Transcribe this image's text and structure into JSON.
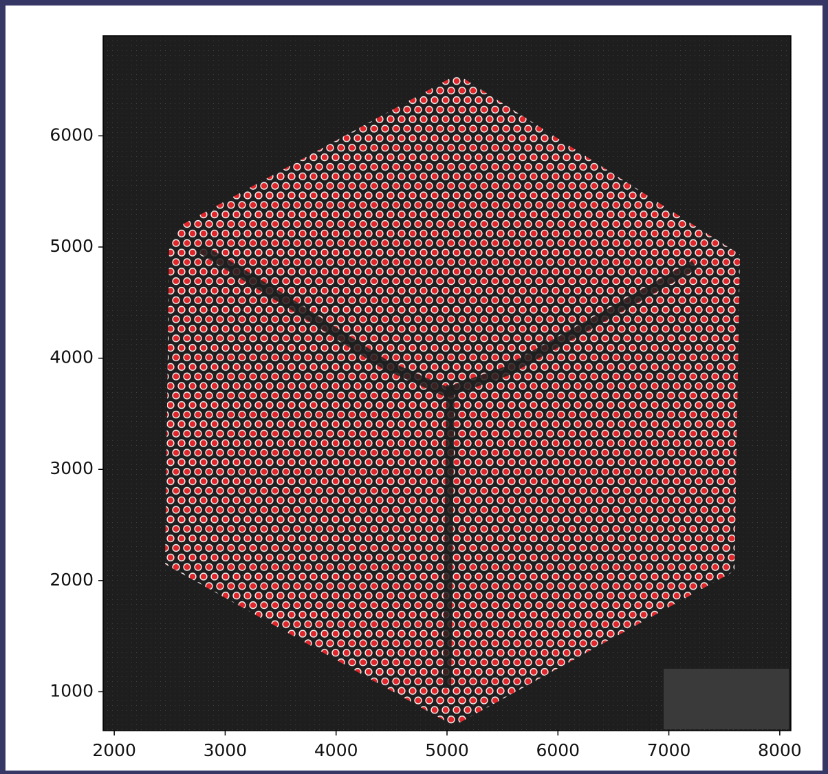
{
  "chart_data": {
    "type": "image",
    "xlim": [
      1900,
      8100
    ],
    "ylim": [
      650,
      6900
    ],
    "xticks": [
      2000,
      3000,
      4000,
      5000,
      6000,
      7000,
      8000
    ],
    "yticks": [
      1000,
      2000,
      3000,
      4000,
      5000,
      6000
    ],
    "color": "#e0262a",
    "background": "#1e1e1e"
  }
}
